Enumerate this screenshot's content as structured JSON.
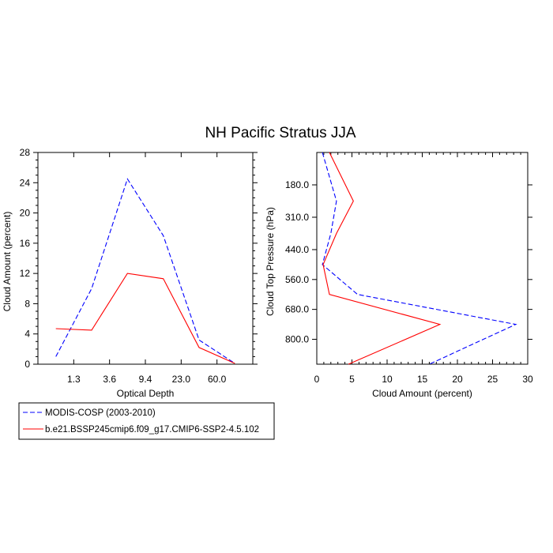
{
  "figure_title": "NH Pacific Stratus JJA",
  "chart_data": [
    {
      "type": "line",
      "title": "",
      "xlabel": "Optical Depth",
      "ylabel": "Cloud Amount (percent)",
      "x_tick_labels": [
        "1.3",
        "3.6",
        "9.4",
        "23.0",
        "60.0"
      ],
      "x_positions": [
        0,
        1,
        2,
        3,
        4,
        5,
        6
      ],
      "y_ticks": [
        0,
        4,
        8,
        12,
        16,
        20,
        24,
        28
      ],
      "ylim": [
        0,
        28
      ],
      "series": [
        {
          "name": "MODIS-COSP (2003-2010)",
          "color": "#0000ff",
          "dash": true,
          "values": [
            1.0,
            10.0,
            24.5,
            17.0,
            3.2,
            0.1
          ]
        },
        {
          "name": "b.e21.BSSP245cmip6.f09_g17.CMIP6-SSP2-4.5.102",
          "color": "#ff0000",
          "dash": false,
          "values": [
            4.7,
            4.5,
            12.0,
            11.3,
            2.2,
            0.1
          ]
        }
      ]
    },
    {
      "type": "line",
      "title": "",
      "xlabel": "Cloud Amount (percent)",
      "ylabel": "Cloud Top Pressure (hPa)",
      "x_ticks": [
        0,
        5,
        10,
        15,
        20,
        25,
        30
      ],
      "xlim": [
        0,
        30
      ],
      "y_tick_labels": [
        "180.0",
        "310.0",
        "440.0",
        "560.0",
        "680.0",
        "800.0"
      ],
      "y_tick_values": [
        180,
        310,
        440,
        560,
        680,
        800
      ],
      "ylim": [
        50,
        900
      ],
      "y_reversed": true,
      "pressure_levels": [
        50,
        245,
        375,
        500,
        620,
        740,
        900
      ],
      "series": [
        {
          "name": "MODIS-COSP (2003-2010)",
          "color": "#0000ff",
          "dash": true,
          "values": [
            0.8,
            2.8,
            2.0,
            0.8,
            5.8,
            28.3,
            16.0
          ]
        },
        {
          "name": "b.e21.BSSP245cmip6.f09_g17.CMIP6-SSP2-4.5.102",
          "color": "#ff0000",
          "dash": false,
          "values": [
            1.8,
            5.2,
            2.8,
            0.9,
            1.8,
            17.5,
            4.5
          ]
        }
      ]
    }
  ],
  "legend": {
    "entries": [
      {
        "label": "MODIS-COSP (2003-2010)",
        "color": "#0000ff",
        "dash": true
      },
      {
        "label": "b.e21.BSSP245cmip6.f09_g17.CMIP6-SSP2-4.5.102",
        "color": "#ff0000",
        "dash": false
      }
    ]
  }
}
